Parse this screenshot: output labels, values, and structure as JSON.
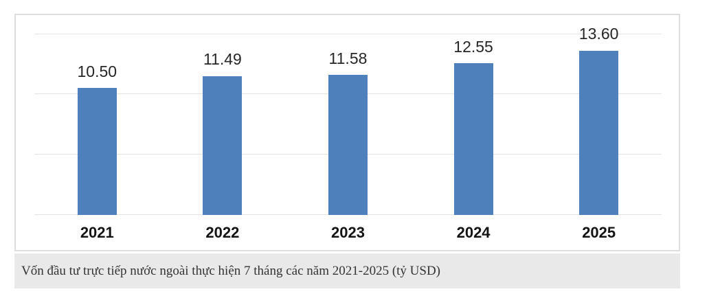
{
  "chart_data": {
    "type": "bar",
    "categories": [
      "2021",
      "2022",
      "2023",
      "2024",
      "2025"
    ],
    "values": [
      10.5,
      11.49,
      11.58,
      12.55,
      13.6
    ],
    "value_labels": [
      "10.50",
      "11.49",
      "11.58",
      "12.55",
      "13.60"
    ],
    "title": "",
    "xlabel": "",
    "ylabel": "",
    "ylim": [
      0,
      15
    ],
    "gridline_step": 5,
    "grid": true,
    "legend_position": "none",
    "bar_color": "#4e80bc",
    "gridline_color": "#e3e3e3"
  },
  "caption": {
    "text": "Vốn đầu tư trực tiếp nước ngoài thực hiện 7 tháng các năm 2021-2025 (tỷ USD)"
  },
  "colors": {
    "chart_border": "#dedede",
    "caption_background": "#e9e9e9",
    "caption_text": "#333333",
    "value_label_text": "#262626",
    "year_label_text": "#141414",
    "page_background": "#ffffff"
  }
}
